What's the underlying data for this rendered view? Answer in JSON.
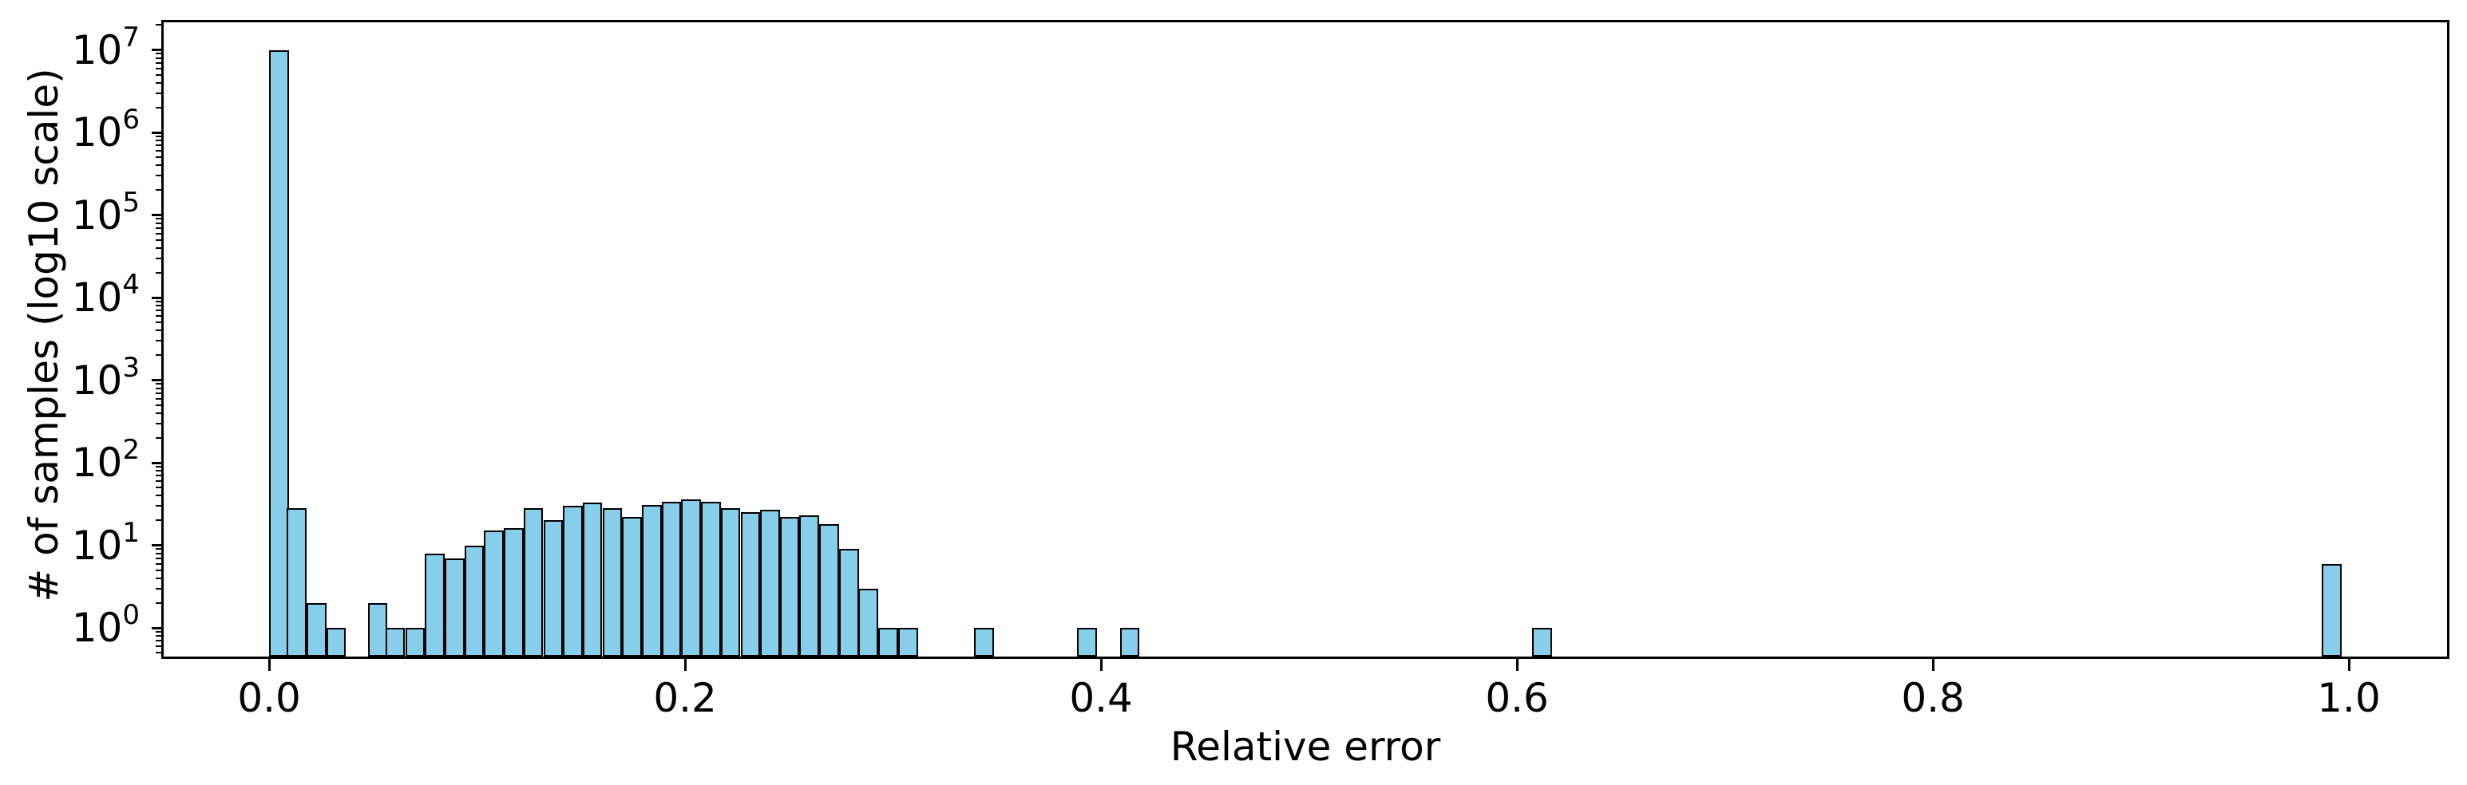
{
  "chart_data": {
    "type": "bar",
    "subtype": "histogram",
    "title": "",
    "xlabel": "Relative error",
    "ylabel": "# of samples (log10 scale)",
    "x_scale": "linear",
    "y_scale": "log10",
    "grid": false,
    "legend": null,
    "bin_width": 0.0095,
    "xlim": [
      -0.0507,
      1.0472
    ],
    "ylim_log10": [
      -0.3478,
      7.3343
    ],
    "x_ticks": [
      {
        "value": 0.0,
        "label": "0.0"
      },
      {
        "value": 0.2,
        "label": "0.2"
      },
      {
        "value": 0.4,
        "label": "0.4"
      },
      {
        "value": 0.6,
        "label": "0.6"
      },
      {
        "value": 0.8,
        "label": "0.8"
      },
      {
        "value": 1.0,
        "label": "1.0"
      }
    ],
    "y_ticks": [
      {
        "base": "10",
        "exponent": 0,
        "label": "10^0",
        "value": 1
      },
      {
        "base": "10",
        "exponent": 1,
        "label": "10^1",
        "value": 10
      },
      {
        "base": "10",
        "exponent": 2,
        "label": "10^2",
        "value": 100
      },
      {
        "base": "10",
        "exponent": 3,
        "label": "10^3",
        "value": 1000
      },
      {
        "base": "10",
        "exponent": 4,
        "label": "10^4",
        "value": 10000
      },
      {
        "base": "10",
        "exponent": 5,
        "label": "10^5",
        "value": 100000
      },
      {
        "base": "10",
        "exponent": 6,
        "label": "10^6",
        "value": 1000000
      },
      {
        "base": "10",
        "exponent": 7,
        "label": "10^7",
        "value": 10000000
      }
    ],
    "y_minor_subs": [
      2,
      3,
      4,
      5,
      6,
      7,
      8,
      9
    ],
    "bars": [
      {
        "x": 0.0,
        "count": 10000000
      },
      {
        "x": 0.0095,
        "count": 28
      },
      {
        "x": 0.019,
        "count": 2
      },
      {
        "x": 0.0285,
        "count": 1
      },
      {
        "x": 0.0474,
        "count": 2
      },
      {
        "x": 0.0569,
        "count": 1
      },
      {
        "x": 0.0664,
        "count": 1
      },
      {
        "x": 0.0759,
        "count": 8
      },
      {
        "x": 0.0854,
        "count": 7
      },
      {
        "x": 0.0948,
        "count": 10
      },
      {
        "x": 0.1043,
        "count": 15
      },
      {
        "x": 0.1138,
        "count": 16
      },
      {
        "x": 0.1233,
        "count": 28
      },
      {
        "x": 0.1328,
        "count": 20
      },
      {
        "x": 0.1422,
        "count": 30
      },
      {
        "x": 0.1517,
        "count": 33
      },
      {
        "x": 0.1612,
        "count": 28
      },
      {
        "x": 0.1707,
        "count": 22
      },
      {
        "x": 0.1802,
        "count": 31
      },
      {
        "x": 0.1896,
        "count": 34
      },
      {
        "x": 0.1991,
        "count": 36
      },
      {
        "x": 0.2086,
        "count": 34
      },
      {
        "x": 0.2181,
        "count": 28
      },
      {
        "x": 0.2276,
        "count": 25
      },
      {
        "x": 0.237,
        "count": 27
      },
      {
        "x": 0.2465,
        "count": 22
      },
      {
        "x": 0.256,
        "count": 23
      },
      {
        "x": 0.2655,
        "count": 18
      },
      {
        "x": 0.275,
        "count": 9
      },
      {
        "x": 0.2844,
        "count": 3
      },
      {
        "x": 0.2939,
        "count": 1
      },
      {
        "x": 0.3034,
        "count": 1
      },
      {
        "x": 0.339,
        "count": 1
      },
      {
        "x": 0.3885,
        "count": 1
      },
      {
        "x": 0.409,
        "count": 1
      },
      {
        "x": 0.6073,
        "count": 1
      },
      {
        "x": 0.9869,
        "count": 6
      }
    ],
    "colors": {
      "bar_fill": "#87CEEB",
      "bar_edge": "#000000",
      "axis": "#000000",
      "background": "#FFFFFF"
    }
  }
}
